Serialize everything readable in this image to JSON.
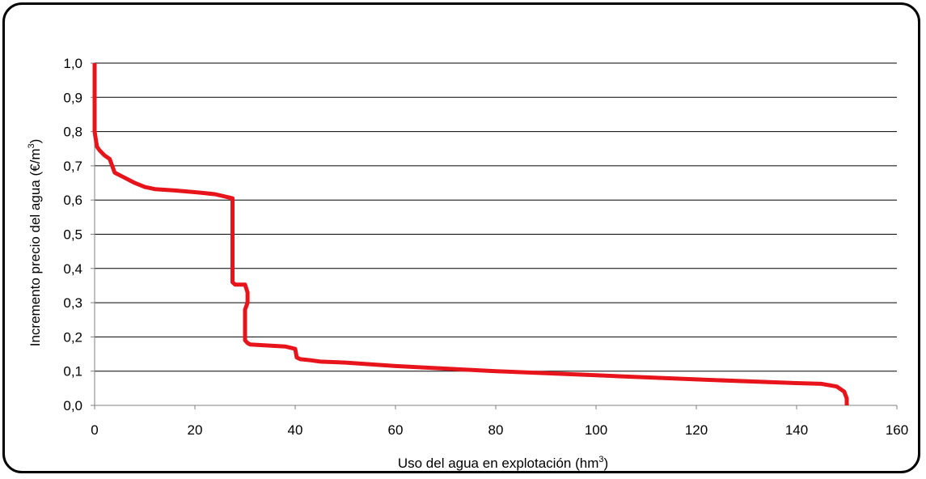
{
  "chart_data": {
    "type": "line",
    "title": "",
    "xlabel": {
      "main": "Uso del agua en explotación (hm",
      "sup": "3",
      "tail": ")"
    },
    "ylabel": {
      "main": "Incremento precio del agua (€/m",
      "sup": "3",
      "tail": ")"
    },
    "xlim": [
      0,
      160
    ],
    "ylim": [
      0,
      1.0
    ],
    "xticks": [
      0,
      20,
      40,
      60,
      80,
      100,
      120,
      140,
      160
    ],
    "xtick_labels": [
      "0",
      "20",
      "40",
      "60",
      "80",
      "100",
      "120",
      "140",
      "160"
    ],
    "yticks": [
      0,
      0.1,
      0.2,
      0.3,
      0.4,
      0.5,
      0.6,
      0.7,
      0.8,
      0.9,
      1.0
    ],
    "ytick_labels": [
      "0,0",
      "0,1",
      "0,2",
      "0,3",
      "0,4",
      "0,5",
      "0,6",
      "0,7",
      "0,8",
      "0,9",
      "1,0"
    ],
    "grid": "horizontal",
    "legend": "none",
    "series": [
      {
        "color": "#e8141b",
        "x": [
          0,
          0,
          0.3,
          0.5,
          1,
          2,
          3,
          4,
          6,
          8,
          10,
          12,
          16,
          20,
          24,
          27.5,
          27.5,
          27.5,
          28,
          30,
          30.5,
          30.5,
          30,
          30,
          30.5,
          31,
          38,
          40,
          40.3,
          41,
          43,
          45,
          50,
          60,
          80,
          100,
          120,
          140,
          145,
          148,
          149.5,
          150,
          150
        ],
        "y": [
          1.0,
          0.8,
          0.77,
          0.755,
          0.745,
          0.73,
          0.72,
          0.68,
          0.665,
          0.65,
          0.638,
          0.632,
          0.628,
          0.623,
          0.617,
          0.605,
          0.6,
          0.36,
          0.353,
          0.353,
          0.33,
          0.3,
          0.28,
          0.19,
          0.182,
          0.178,
          0.172,
          0.165,
          0.14,
          0.135,
          0.132,
          0.128,
          0.125,
          0.115,
          0.1,
          0.088,
          0.076,
          0.065,
          0.063,
          0.055,
          0.04,
          0.02,
          0.0
        ]
      }
    ]
  }
}
